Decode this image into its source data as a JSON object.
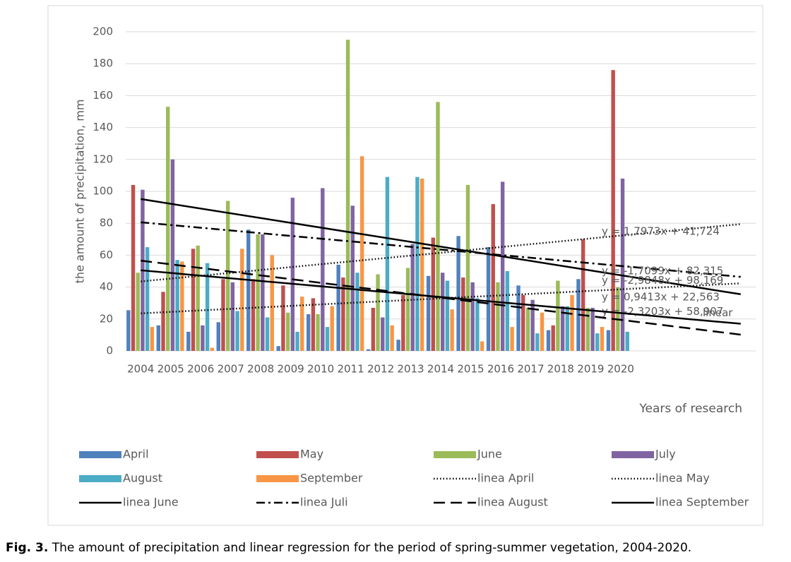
{
  "chart_data": {
    "type": "bar",
    "y_label": "the amount of precipitation, mm",
    "x_label": "Years of research",
    "categories": [
      "2004",
      "2005",
      "2006",
      "2007",
      "2008",
      "2009",
      "2010",
      "2011",
      "2012",
      "2013",
      "2014",
      "2015",
      "2016",
      "2017",
      "2018",
      "2019",
      "2020",
      null,
      null,
      null,
      null
    ],
    "ylim": [
      0,
      200
    ],
    "yticks": [
      0,
      20,
      40,
      60,
      80,
      100,
      120,
      140,
      160,
      180,
      200
    ],
    "grid": true,
    "series": [
      {
        "name": "April",
        "color": "#4f81bd",
        "values": [
          25.5,
          16,
          12,
          18,
          76,
          3,
          23,
          54,
          1,
          7,
          47,
          72,
          65,
          41,
          13,
          45,
          13,
          null,
          null,
          null,
          null
        ]
      },
      {
        "name": "May",
        "color": "#c0504d",
        "values": [
          104,
          37,
          64,
          45,
          45,
          41,
          33,
          46,
          27,
          35,
          71,
          46,
          92,
          35,
          16,
          70,
          176,
          null,
          null,
          null,
          null
        ]
      },
      {
        "name": "June",
        "color": "#9bbb59",
        "values": [
          49,
          153,
          66,
          94,
          73,
          24,
          23,
          195,
          48,
          52,
          156,
          104,
          43,
          27,
          44,
          27,
          40,
          null,
          null,
          null,
          null
        ]
      },
      {
        "name": "July",
        "color": "#8064a2",
        "values": [
          101,
          120,
          16,
          43,
          73,
          96,
          102,
          91,
          21,
          67,
          49,
          43,
          106,
          32,
          28,
          27,
          108,
          null,
          null,
          null,
          null
        ]
      },
      {
        "name": "August",
        "color": "#4bacc6",
        "values": [
          65,
          57,
          55,
          25,
          21,
          12,
          15,
          49,
          109,
          109,
          44,
          33,
          50,
          11,
          28,
          11,
          12,
          null,
          null,
          null,
          null
        ]
      },
      {
        "name": "September",
        "color": "#f79646",
        "values": [
          15,
          56,
          2,
          64,
          60,
          34,
          28,
          122,
          16,
          108,
          26,
          6,
          15,
          24,
          35,
          15,
          null,
          null,
          null,
          null,
          null
        ]
      }
    ],
    "trendlines": [
      {
        "name": "linea April",
        "dash": "dotted",
        "slope": 0.9413,
        "intercept": 22.563,
        "label": "y = 0,9413x + 22,563"
      },
      {
        "name": "linea May",
        "dash": "dotted",
        "slope": 1.7973,
        "intercept": 41.724,
        "label": "y = 1,7973x + 41,724"
      },
      {
        "name": "linea June",
        "dash": "solid",
        "slope": -2.9848,
        "intercept": 98.169,
        "label": "y = -2,9848x + 98,169"
      },
      {
        "name": "linea Juli",
        "dash": "dashdot",
        "slope": -1.7099,
        "intercept": 82.315,
        "label": "y = -1,7099x + 82,315"
      },
      {
        "name": "linea August",
        "dash": "dashed",
        "slope": -2.3203,
        "intercept": 58.907,
        "label": "y = -2,3203x + 58,907"
      },
      {
        "name": "linea September",
        "dash": "solid",
        "slope": -1.675,
        "intercept": 52.2,
        "label": "linear"
      }
    ]
  },
  "caption": {
    "label": "Fig. 3.",
    "text": "The amount of precipitation and linear regression for the period of spring-summer vegetation, 2004-2020."
  }
}
